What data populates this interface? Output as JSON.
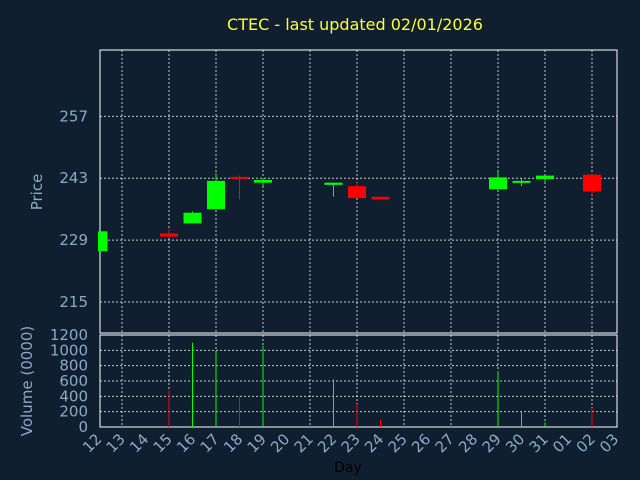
{
  "chart_data": [
    {
      "type": "candlestick",
      "title": "CTEC - last updated 02/01/2026",
      "ylabel": "Price",
      "ylim": [
        208,
        272
      ],
      "yticks": [
        215,
        229,
        243,
        257
      ],
      "grid": true,
      "up_color": "#00ff00",
      "down_color": "#ff0000",
      "candles": [
        {
          "day": "12",
          "open": 226.5,
          "high": 231.0,
          "low": 226.5,
          "close": 231.0
        },
        {
          "day": "15",
          "open": 230.5,
          "high": 231.5,
          "low": 229.5,
          "close": 229.8
        },
        {
          "day": "16",
          "open": 232.8,
          "high": 235.5,
          "low": 232.8,
          "close": 235.2
        },
        {
          "day": "17",
          "open": 236.0,
          "high": 244.2,
          "low": 236.0,
          "close": 242.4
        },
        {
          "day": "18",
          "open": 243.3,
          "high": 243.6,
          "low": 238.2,
          "close": 243.0
        },
        {
          "day": "19",
          "open": 242.0,
          "high": 243.0,
          "low": 241.2,
          "close": 242.6
        },
        {
          "day": "22",
          "open": 241.5,
          "high": 242.0,
          "low": 238.8,
          "close": 242.0
        },
        {
          "day": "23",
          "open": 241.2,
          "high": 242.0,
          "low": 238.5,
          "close": 238.5
        },
        {
          "day": "24",
          "open": 238.8,
          "high": 238.8,
          "low": 238.0,
          "close": 238.2
        },
        {
          "day": "29",
          "open": 240.5,
          "high": 244.5,
          "low": 240.5,
          "close": 243.2
        },
        {
          "day": "30",
          "open": 242.0,
          "high": 242.8,
          "low": 241.2,
          "close": 242.4
        },
        {
          "day": "31",
          "open": 242.8,
          "high": 243.6,
          "low": 242.2,
          "close": 243.6
        },
        {
          "day": "02",
          "open": 243.8,
          "high": 243.8,
          "low": 239.2,
          "close": 240.0
        }
      ]
    },
    {
      "type": "bar",
      "ylabel": "Volume (0000)",
      "xlabel": "Day",
      "ylim": [
        0,
        1200
      ],
      "yticks": [
        0,
        200,
        400,
        600,
        800,
        1000,
        1200
      ],
      "categories": [
        "12",
        "13",
        "14",
        "15",
        "16",
        "17",
        "18",
        "19",
        "20",
        "21",
        "22",
        "23",
        "24",
        "25",
        "26",
        "27",
        "28",
        "29",
        "30",
        "31",
        "01",
        "02",
        "03"
      ],
      "bars": [
        {
          "day": "12",
          "value": 0,
          "color": "#00ff00"
        },
        {
          "day": "15",
          "value": 480,
          "color": "#ff0000"
        },
        {
          "day": "16",
          "value": 1100,
          "color": "#00ff00"
        },
        {
          "day": "17",
          "value": 980,
          "color": "#00ff00"
        },
        {
          "day": "18",
          "value": 400,
          "color": "#ff0000"
        },
        {
          "day": "19",
          "value": 1060,
          "color": "#00ff00"
        },
        {
          "day": "22",
          "value": 620,
          "color": "#00ff00"
        },
        {
          "day": "23",
          "value": 300,
          "color": "#ff0000"
        },
        {
          "day": "24",
          "value": 100,
          "color": "#ff0000"
        },
        {
          "day": "29",
          "value": 730,
          "color": "#00ff00"
        },
        {
          "day": "30",
          "value": 210,
          "color": "#00ff00"
        },
        {
          "day": "31",
          "value": 60,
          "color": "#00ff00"
        },
        {
          "day": "02",
          "value": 250,
          "color": "#ff0000"
        }
      ]
    }
  ]
}
